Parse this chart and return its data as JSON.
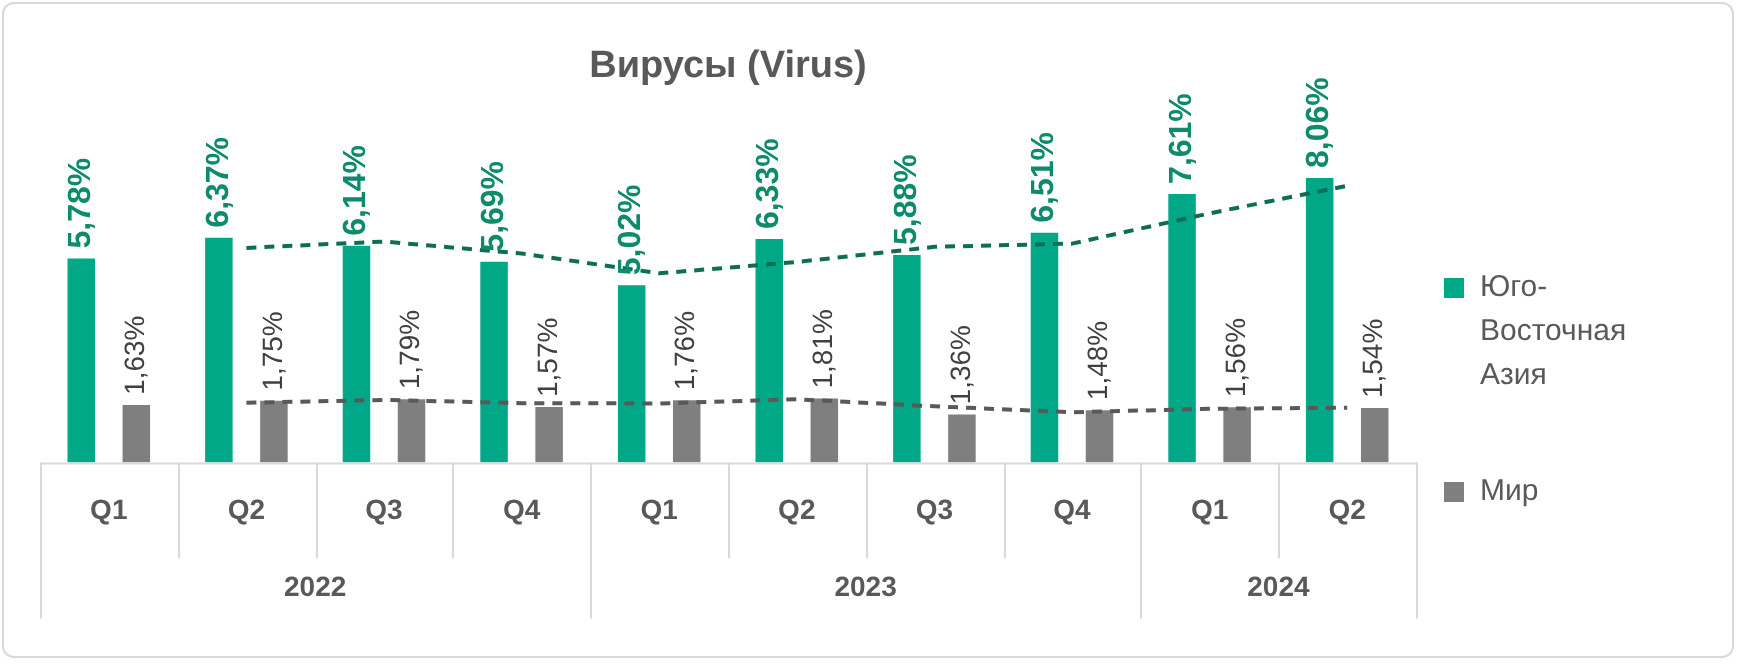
{
  "chart_data": {
    "type": "bar",
    "title": "Вирусы (Virus)",
    "categories": [
      "Q1",
      "Q2",
      "Q3",
      "Q4",
      "Q1",
      "Q2",
      "Q3",
      "Q4",
      "Q1",
      "Q2"
    ],
    "series": [
      {
        "name": "Юго-Восточная Азия",
        "color": "#00a887",
        "values": [
          5.78,
          6.37,
          6.14,
          5.69,
          5.02,
          6.33,
          5.88,
          6.51,
          7.61,
          8.06
        ],
        "value_labels": [
          "5,78%",
          "6,37%",
          "6,14%",
          "5,69%",
          "5,02%",
          "6,33%",
          "5,88%",
          "6,51%",
          "7,61%",
          "8,06%"
        ]
      },
      {
        "name": "Мир",
        "color": "#7f7f7f",
        "values": [
          1.63,
          1.75,
          1.79,
          1.57,
          1.76,
          1.81,
          1.36,
          1.48,
          1.56,
          1.54
        ],
        "value_labels": [
          "1,63%",
          "1,75%",
          "1,79%",
          "1,57%",
          "1,76%",
          "1,81%",
          "1,36%",
          "1,48%",
          "1,56%",
          "1,54%"
        ]
      },
      {
        "type": "line",
        "color": "#0e6e55",
        "line_style": "dashed",
        "values": [
          null,
          6.08,
          6.26,
          5.92,
          5.36,
          5.68,
          6.11,
          6.2,
          7.06,
          7.84
        ]
      },
      {
        "type": "line",
        "color": "#595959",
        "line_style": "dashed",
        "values": [
          null,
          1.69,
          1.77,
          1.68,
          1.67,
          1.79,
          1.59,
          1.42,
          1.52,
          1.55
        ]
      }
    ],
    "annotations": [
      "2022",
      "2023",
      "2024"
    ],
    "legend": "right",
    "marker": "none",
    "grid": false
  }
}
